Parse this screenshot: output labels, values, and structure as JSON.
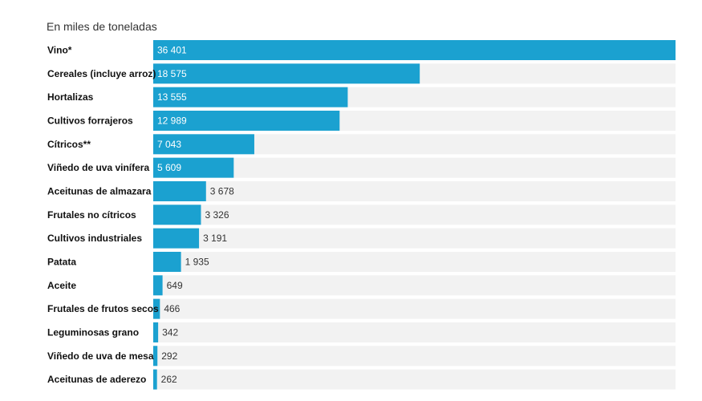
{
  "chart_data": {
    "type": "bar",
    "orientation": "horizontal",
    "subtitle": "En miles de toneladas",
    "categories": [
      "Vino*",
      "Cereales (incluye arroz)",
      "Hortalizas",
      "Cultivos forrajeros",
      "Cítricos**",
      "Viñedo de uva vinífera",
      "Aceitunas de almazara",
      "Frutales no cítricos",
      "Cultivos industriales",
      "Patata",
      "Aceite",
      "Frutales de frutos secos",
      "Leguminosas grano",
      "Viñedo de uva de mesa",
      "Aceitunas de aderezo"
    ],
    "values": [
      36401,
      18575,
      13555,
      12989,
      7043,
      5609,
      3678,
      3326,
      3191,
      1935,
      649,
      466,
      342,
      292,
      262
    ],
    "value_labels": [
      "36 401",
      "18 575",
      "13 555",
      "12 989",
      "7 043",
      "5 609",
      "3 678",
      "3 326",
      "3 191",
      "1 935",
      "649",
      "466",
      "342",
      "292",
      "262"
    ],
    "xlim": [
      0,
      36401
    ],
    "colors": {
      "bar": "#1ba1d0",
      "track": "#f2f2f2",
      "label": "#111111",
      "value_inside": "#ffffff",
      "value_outside": "#333333"
    }
  }
}
